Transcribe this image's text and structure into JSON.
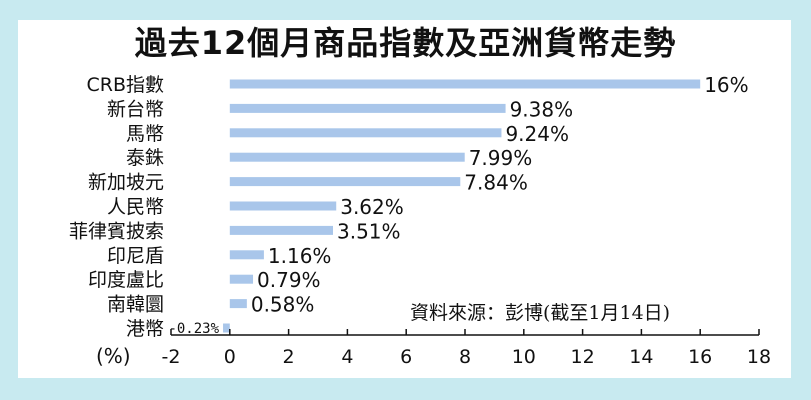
{
  "chart_data": {
    "type": "bar",
    "orientation": "horizontal",
    "title": "過去12個月商品指數及亞洲貨幣走勢",
    "categories": [
      "CRB指數",
      "新台幣",
      "馬幣",
      "泰銖",
      "新加坡元",
      "人民幣",
      "菲律賓披索",
      "印尼盾",
      "印度盧比",
      "南韓圜",
      "港幣"
    ],
    "values": [
      16,
      9.38,
      9.24,
      7.99,
      7.84,
      3.62,
      3.51,
      1.16,
      0.79,
      0.58,
      -0.23
    ],
    "value_labels": [
      "16%",
      "9.38%",
      "9.24%",
      "7.99%",
      "7.84%",
      "3.62%",
      "3.51%",
      "1.16%",
      "0.79%",
      "0.58%",
      "-0.23%"
    ],
    "xlim": [
      -2,
      18
    ],
    "xticks": [
      "-2",
      "0",
      "2",
      "4",
      "6",
      "8",
      "10",
      "12",
      "14",
      "16",
      "18"
    ],
    "unit_label": "(%)",
    "source": "資料來源：彭博(截至1月14日)",
    "bar_color": "#a9c6ea",
    "grid": false
  }
}
